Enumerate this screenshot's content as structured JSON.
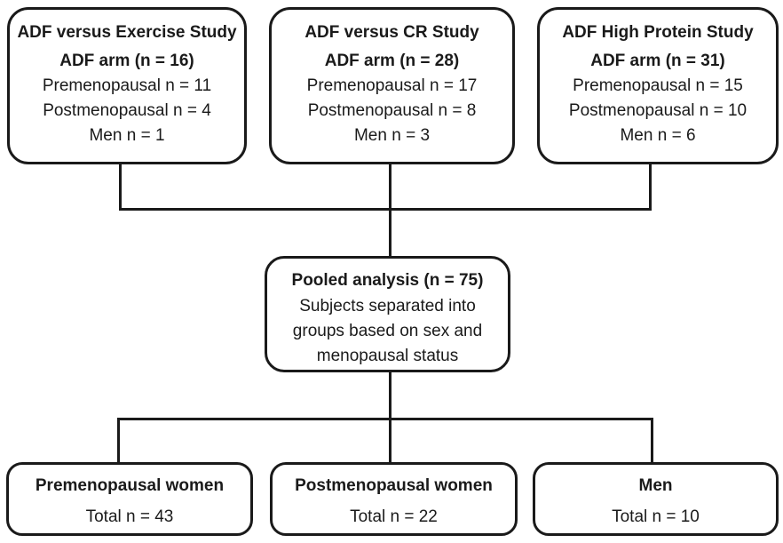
{
  "figure": {
    "background": "#ffffff",
    "line_color": "#1a1a1a",
    "text_color": "#1a1a1a",
    "top_boxes": [
      {
        "title": "ADF versus Exercise Study",
        "arm": "ADF arm (n = 16)",
        "lines": [
          "Premenopausal n = 11",
          "Postmenopausal n = 4",
          "Men n = 1"
        ]
      },
      {
        "title": "ADF versus CR Study",
        "arm": "ADF arm (n = 28)",
        "lines": [
          "Premenopausal n = 17",
          "Postmenopausal n = 8",
          "Men n = 3"
        ]
      },
      {
        "title": "ADF High Protein Study",
        "arm": "ADF arm (n = 31)",
        "lines": [
          "Premenopausal n = 15",
          "Postmenopausal n = 10",
          "Men n = 6"
        ]
      }
    ],
    "pooled_box": {
      "title": "Pooled analysis (n = 75)",
      "lines": [
        "Subjects separated into",
        "groups based on sex and",
        "menopausal status"
      ]
    },
    "bottom_boxes": [
      {
        "title": "Premenopausal women",
        "total": "Total n = 43"
      },
      {
        "title": "Postmenopausal women",
        "total": "Total n = 22"
      },
      {
        "title": "Men",
        "total": "Total n = 10"
      }
    ]
  }
}
